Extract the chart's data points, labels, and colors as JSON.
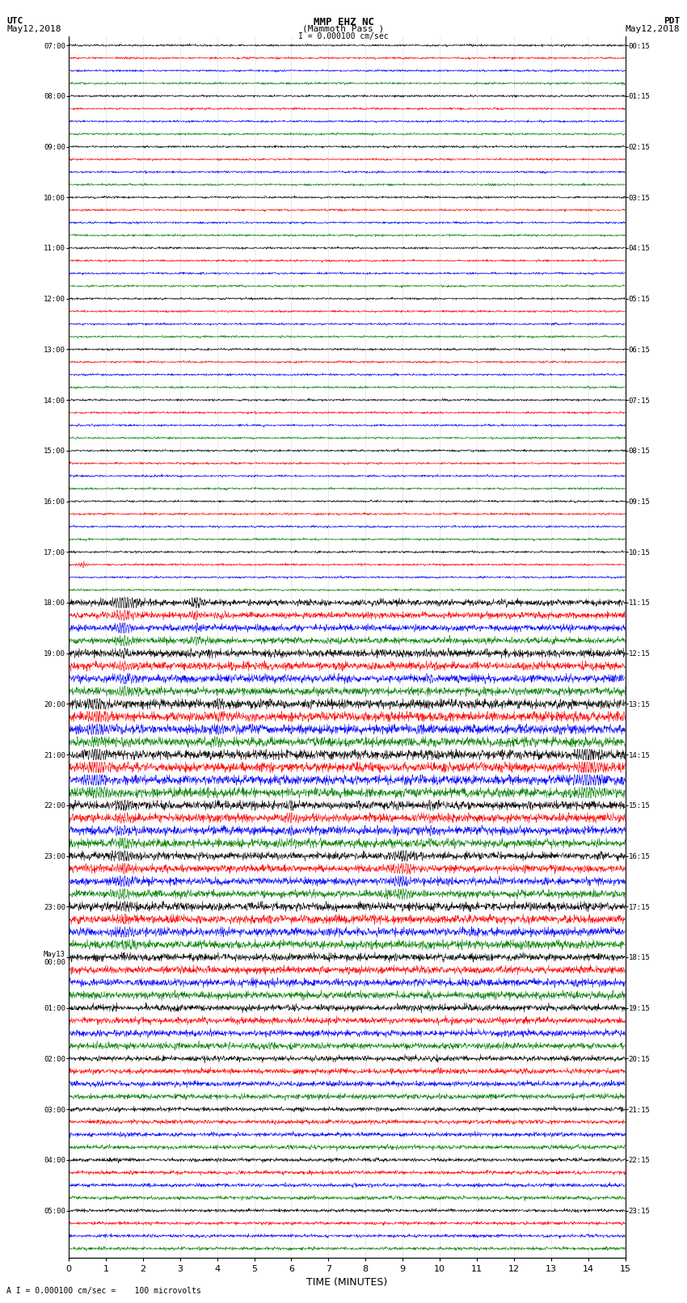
{
  "title_line1": "MMP EHZ NC",
  "title_line2": "(Mammoth Pass )",
  "scale_label": "I = 0.000100 cm/sec",
  "footer_label": "A I = 0.000100 cm/sec =    100 microvolts",
  "xlabel": "TIME (MINUTES)",
  "left_header": "UTC",
  "left_date": "May12,2018",
  "right_header": "PDT",
  "right_date": "May12,2018",
  "trace_colors": [
    "black",
    "red",
    "blue",
    "green"
  ],
  "n_rows": 96,
  "n_points": 1800,
  "x_min": 0,
  "x_max": 15,
  "x_ticks": [
    0,
    1,
    2,
    3,
    4,
    5,
    6,
    7,
    8,
    9,
    10,
    11,
    12,
    13,
    14,
    15
  ],
  "background_color": "white",
  "fig_width": 8.5,
  "fig_height": 16.13
}
